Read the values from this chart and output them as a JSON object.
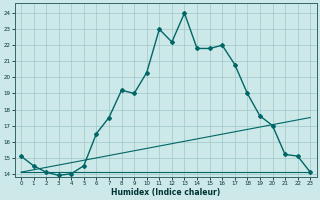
{
  "xlabel": "Humidex (Indice chaleur)",
  "bg_color": "#cce8e8",
  "grid_color": "#a0c8c8",
  "line_color": "#006666",
  "xlim": [
    -0.5,
    23.5
  ],
  "ylim": [
    13.8,
    24.6
  ],
  "xticks": [
    0,
    1,
    2,
    3,
    4,
    5,
    6,
    7,
    8,
    9,
    10,
    11,
    12,
    13,
    14,
    15,
    16,
    17,
    18,
    19,
    20,
    21,
    22,
    23
  ],
  "yticks": [
    14,
    15,
    16,
    17,
    18,
    19,
    20,
    21,
    22,
    23,
    24
  ],
  "line1_x": [
    0,
    1,
    2,
    3,
    4,
    5,
    6,
    7,
    8,
    9,
    10,
    11,
    12,
    13,
    14,
    15,
    16,
    17,
    18,
    19,
    20,
    21,
    22,
    23
  ],
  "line1_y": [
    15.1,
    14.5,
    14.1,
    13.9,
    14.0,
    14.5,
    16.5,
    17.5,
    19.2,
    19.0,
    20.3,
    23.0,
    22.2,
    24.0,
    21.8,
    21.8,
    22.0,
    20.8,
    19.0,
    17.6,
    17.0,
    15.2,
    15.1,
    14.1
  ],
  "line2_x": [
    0,
    23
  ],
  "line2_y": [
    14.1,
    17.5
  ],
  "line3_x": [
    0,
    23
  ],
  "line3_y": [
    14.1,
    14.1
  ]
}
